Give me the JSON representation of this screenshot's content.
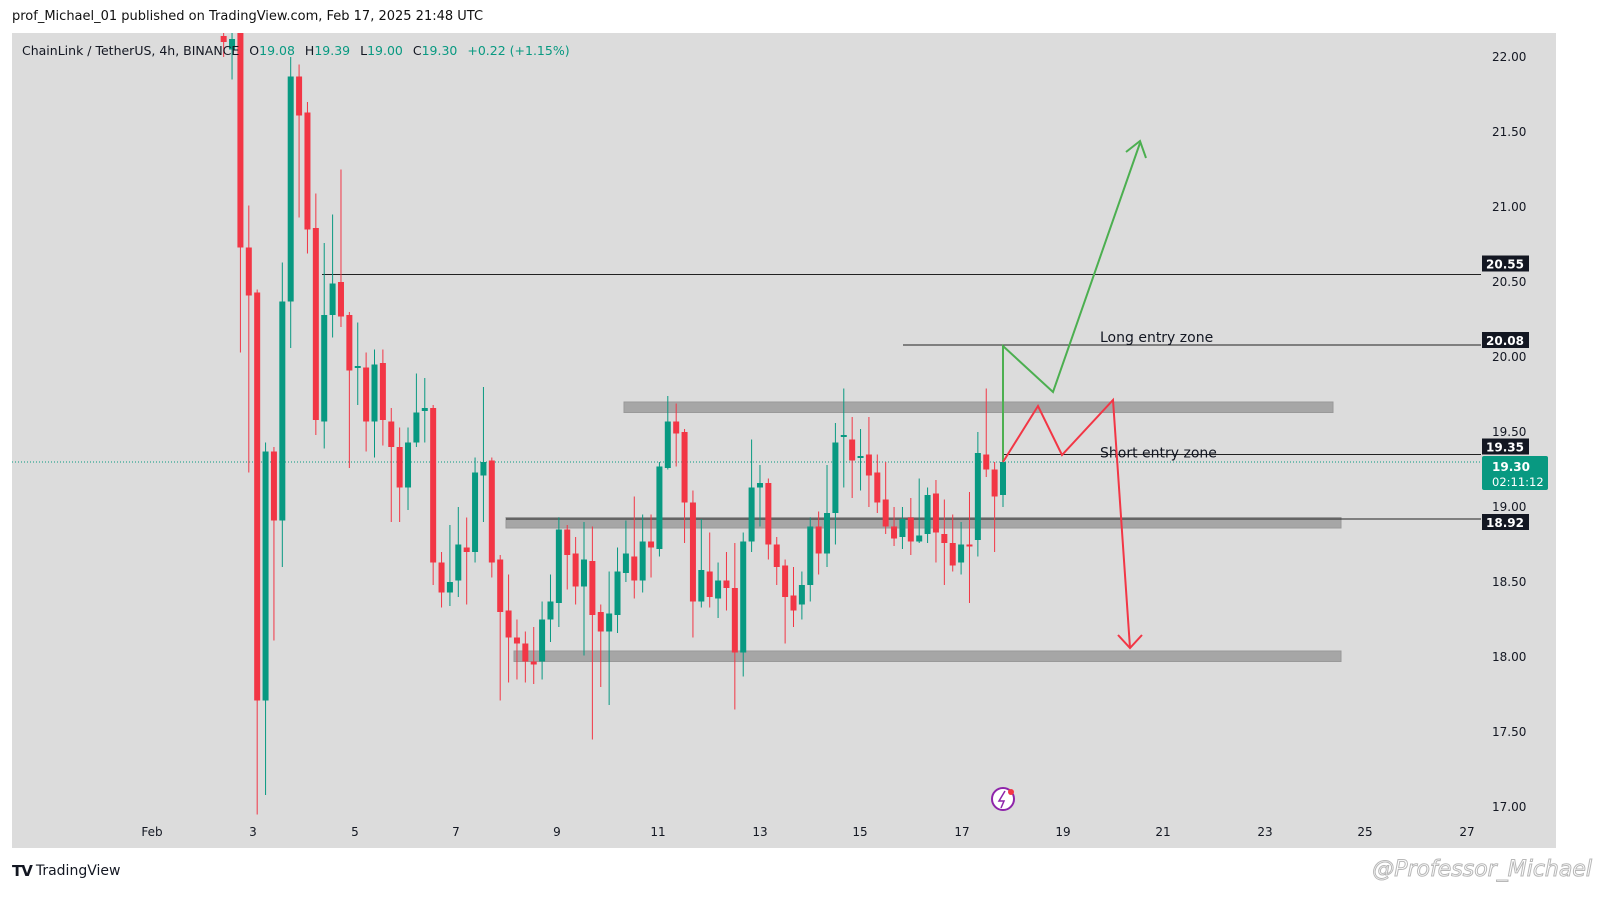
{
  "header": {
    "published": "prof_Michael_01 published on TradingView.com, Feb 17, 2025 21:48 UTC"
  },
  "legend": {
    "symbol": "ChainLink / TetherUS, 4h, BINANCE",
    "o_label": "O",
    "o": "19.08",
    "h_label": "H",
    "h": "19.39",
    "l_label": "L",
    "l": "19.00",
    "c_label": "C",
    "c": "19.30",
    "change": "+0.22 (+1.15%)"
  },
  "footer": {
    "brand": "TradingView",
    "watermark": "@Professor_Michael"
  },
  "colors": {
    "up": "#089981",
    "down": "#f23645",
    "background": "#dcdcdc",
    "long_path": "#4caf50",
    "short_path": "#f23645",
    "zone": "#a6a6a6"
  },
  "chart_data": {
    "type": "candlestick",
    "timeframe": "4h",
    "ylim": [
      16.85,
      22.15
    ],
    "y_ticks": [
      "22.00",
      "21.50",
      "21.00",
      "20.50",
      "20.00",
      "19.50",
      "19.00",
      "18.50",
      "18.00",
      "17.50",
      "17.00"
    ],
    "x_ticks": [
      "Feb",
      "3",
      "5",
      "7",
      "9",
      "11",
      "13",
      "15",
      "17",
      "19",
      "21",
      "23",
      "25",
      "27"
    ],
    "candles_ohlc": [
      [
        22.14,
        22.2,
        22.0,
        22.1
      ],
      [
        22.05,
        22.2,
        21.85,
        22.12
      ],
      [
        22.2,
        22.3,
        20.03,
        20.73
      ],
      [
        20.73,
        21.01,
        19.23,
        20.41
      ],
      [
        20.43,
        20.45,
        16.95,
        17.71
      ],
      [
        17.71,
        19.43,
        17.08,
        19.37
      ],
      [
        19.37,
        19.4,
        18.11,
        18.91
      ],
      [
        18.91,
        20.63,
        18.6,
        20.37
      ],
      [
        20.37,
        22.0,
        20.06,
        21.87
      ],
      [
        21.87,
        21.95,
        20.93,
        21.61
      ],
      [
        21.63,
        21.7,
        20.69,
        20.85
      ],
      [
        20.86,
        21.09,
        19.48,
        19.58
      ],
      [
        19.57,
        20.76,
        19.39,
        20.28
      ],
      [
        20.28,
        20.95,
        20.13,
        20.49
      ],
      [
        20.5,
        21.25,
        20.2,
        20.27
      ],
      [
        20.28,
        20.3,
        19.26,
        19.91
      ],
      [
        19.93,
        20.23,
        19.68,
        19.94
      ],
      [
        19.93,
        20.03,
        19.37,
        19.57
      ],
      [
        19.57,
        20.05,
        19.33,
        19.95
      ],
      [
        19.96,
        20.05,
        19.41,
        19.58
      ],
      [
        19.57,
        19.66,
        18.9,
        19.4
      ],
      [
        19.4,
        19.53,
        18.9,
        19.13
      ],
      [
        19.13,
        19.53,
        18.98,
        19.43
      ],
      [
        19.43,
        19.89,
        19.4,
        19.63
      ],
      [
        19.64,
        19.86,
        19.43,
        19.66
      ],
      [
        19.66,
        19.68,
        18.48,
        18.63
      ],
      [
        18.63,
        18.7,
        18.33,
        18.43
      ],
      [
        18.43,
        18.88,
        18.34,
        18.5
      ],
      [
        18.51,
        19.0,
        18.4,
        18.75
      ],
      [
        18.73,
        18.93,
        18.35,
        18.7
      ],
      [
        18.7,
        19.33,
        18.63,
        19.23
      ],
      [
        19.21,
        19.8,
        18.9,
        19.3
      ],
      [
        19.31,
        19.33,
        18.53,
        18.63
      ],
      [
        18.65,
        18.68,
        17.71,
        18.3
      ],
      [
        18.31,
        18.55,
        17.83,
        18.13
      ],
      [
        18.13,
        18.25,
        17.85,
        18.09
      ],
      [
        18.09,
        18.17,
        17.83,
        17.97
      ],
      [
        17.97,
        18.2,
        17.82,
        17.95
      ],
      [
        17.97,
        18.37,
        17.85,
        18.25
      ],
      [
        18.25,
        18.55,
        18.1,
        18.37
      ],
      [
        18.36,
        18.93,
        18.2,
        18.85
      ],
      [
        18.85,
        18.88,
        18.45,
        18.68
      ],
      [
        18.69,
        18.8,
        18.35,
        18.47
      ],
      [
        18.47,
        18.9,
        18.01,
        18.65
      ],
      [
        18.64,
        18.87,
        17.45,
        18.28
      ],
      [
        18.3,
        18.35,
        17.8,
        18.17
      ],
      [
        18.17,
        18.57,
        17.68,
        18.29
      ],
      [
        18.28,
        18.73,
        18.16,
        18.57
      ],
      [
        18.56,
        18.91,
        18.5,
        18.69
      ],
      [
        18.67,
        19.07,
        18.39,
        18.51
      ],
      [
        18.51,
        18.95,
        18.43,
        18.77
      ],
      [
        18.77,
        18.95,
        18.53,
        18.73
      ],
      [
        18.72,
        19.3,
        18.67,
        19.27
      ],
      [
        19.26,
        19.74,
        19.25,
        19.57
      ],
      [
        19.57,
        19.69,
        19.27,
        19.49
      ],
      [
        19.5,
        19.52,
        18.76,
        19.03
      ],
      [
        19.03,
        19.11,
        18.13,
        18.37
      ],
      [
        18.37,
        18.92,
        18.33,
        18.58
      ],
      [
        18.57,
        18.83,
        18.33,
        18.4
      ],
      [
        18.39,
        18.63,
        18.26,
        18.51
      ],
      [
        18.51,
        18.7,
        18.31,
        18.46
      ],
      [
        18.46,
        18.76,
        17.65,
        18.03
      ],
      [
        18.03,
        18.83,
        17.87,
        18.77
      ],
      [
        18.77,
        19.45,
        18.7,
        19.13
      ],
      [
        19.13,
        19.28,
        18.87,
        19.16
      ],
      [
        19.16,
        19.19,
        18.65,
        18.75
      ],
      [
        18.75,
        18.8,
        18.48,
        18.6
      ],
      [
        18.61,
        18.65,
        18.09,
        18.4
      ],
      [
        18.41,
        18.6,
        18.2,
        18.31
      ],
      [
        18.35,
        18.57,
        18.25,
        18.48
      ],
      [
        18.48,
        18.93,
        18.37,
        18.87
      ],
      [
        18.87,
        18.97,
        18.55,
        18.69
      ],
      [
        18.69,
        19.28,
        18.6,
        18.96
      ],
      [
        18.96,
        19.56,
        18.75,
        19.43
      ],
      [
        19.47,
        19.79,
        19.13,
        19.48
      ],
      [
        19.45,
        19.6,
        19.06,
        19.31
      ],
      [
        19.33,
        19.52,
        19.11,
        19.34
      ],
      [
        19.35,
        19.6,
        19.0,
        19.21
      ],
      [
        19.23,
        19.35,
        18.96,
        19.03
      ],
      [
        19.05,
        19.3,
        18.82,
        18.87
      ],
      [
        18.87,
        19.0,
        18.74,
        18.79
      ],
      [
        18.8,
        19.0,
        18.72,
        18.92
      ],
      [
        18.93,
        19.06,
        18.68,
        18.77
      ],
      [
        18.77,
        19.19,
        18.76,
        18.81
      ],
      [
        18.82,
        19.13,
        18.76,
        19.08
      ],
      [
        19.09,
        19.18,
        18.63,
        18.83
      ],
      [
        18.82,
        19.05,
        18.48,
        18.76
      ],
      [
        18.76,
        18.95,
        18.57,
        18.61
      ],
      [
        18.63,
        18.9,
        18.55,
        18.75
      ],
      [
        18.75,
        19.1,
        18.36,
        18.74
      ],
      [
        18.78,
        19.5,
        18.67,
        19.36
      ],
      [
        19.35,
        19.79,
        19.2,
        19.25
      ],
      [
        19.25,
        19.3,
        18.7,
        19.07
      ],
      [
        19.08,
        19.39,
        19.0,
        19.3
      ]
    ],
    "levels": [
      {
        "price": 20.55,
        "label": "20.55"
      },
      {
        "price": 20.08,
        "label": "20.08"
      },
      {
        "price": 19.35,
        "label": "19.35"
      },
      {
        "price": 18.92,
        "label": "18.92"
      }
    ],
    "current_price": {
      "label": "19.30",
      "countdown": "02:11:12"
    },
    "zones": [
      {
        "top": 19.7,
        "bottom": 19.63
      },
      {
        "top": 18.93,
        "bottom": 18.86
      },
      {
        "top": 18.04,
        "bottom": 17.97
      }
    ],
    "annotations": [
      {
        "text": "Long entry zone",
        "price": 20.08
      },
      {
        "text": "Short entry zone",
        "price": 19.35
      }
    ]
  }
}
